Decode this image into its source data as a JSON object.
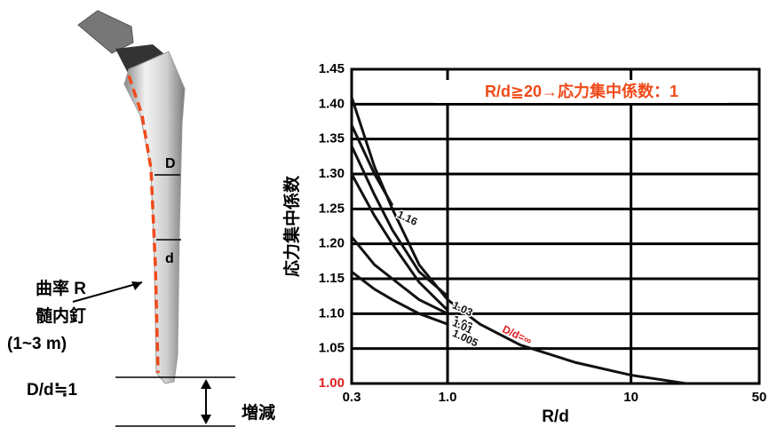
{
  "chart_data": {
    "type": "line",
    "xscale": "log",
    "annotation": "R/d≧20→応力集中係数：1",
    "annotation_color": "#f04a1a",
    "x_label": "R/d",
    "y_label": "応力集中係数",
    "grid": true,
    "x": [
      0.3,
      0.4,
      0.5,
      0.7,
      1.0,
      1.5,
      2.5,
      5,
      10,
      20
    ],
    "series": [
      {
        "name": "D/d=∞",
        "color": "#111111",
        "label_color": "#e02020",
        "values": [
          1.41,
          1.31,
          1.25,
          1.17,
          1.12,
          1.085,
          1.055,
          1.03,
          1.012,
          1.0
        ]
      },
      {
        "name": "1.16",
        "color": "#111111",
        "label_color": "#111111",
        "values": [
          1.37,
          1.3,
          1.255,
          null,
          null,
          null,
          null,
          null,
          null,
          null
        ]
      },
      {
        "name": "1.03",
        "color": "#111111",
        "label_color": "#111111",
        "values": [
          1.34,
          1.27,
          1.22,
          1.16,
          1.125,
          null,
          null,
          null,
          null,
          null
        ]
      },
      {
        "name": "1.02",
        "color": "#111111",
        "label_color": "#111111",
        "values": [
          1.3,
          1.24,
          1.2,
          1.145,
          1.105,
          null,
          null,
          null,
          null,
          null
        ]
      },
      {
        "name": "1.01",
        "color": "#111111",
        "label_color": "#111111",
        "values": [
          1.21,
          1.17,
          1.15,
          1.12,
          1.1,
          null,
          null,
          null,
          null,
          null
        ]
      },
      {
        "name": "1.005",
        "color": "#111111",
        "label_color": "#111111",
        "values": [
          1.16,
          1.135,
          1.12,
          1.1,
          1.085,
          null,
          null,
          null,
          null,
          null
        ]
      }
    ],
    "xlim": [
      0.3,
      50
    ],
    "xticks": [
      0.3,
      {
        "value": 1,
        "label": "1.0"
      },
      10,
      50
    ],
    "ylim": [
      1.0,
      1.45
    ],
    "yticks": [
      {
        "value": 1.0,
        "label": "1.00",
        "color": "#e02020"
      },
      {
        "value": 1.05,
        "label": "1.05"
      },
      {
        "value": 1.1,
        "label": "1.10"
      },
      {
        "value": 1.15,
        "label": "1.15"
      },
      {
        "value": 1.2,
        "label": "1.20"
      },
      {
        "value": 1.25,
        "label": "1.25"
      },
      {
        "value": 1.3,
        "label": "1.30"
      },
      {
        "value": 1.35,
        "label": "1.35"
      },
      {
        "value": 1.4,
        "label": "1.40"
      },
      {
        "value": 1.45,
        "label": "1.45"
      }
    ]
  },
  "diagram": {
    "labels": [
      "D",
      "d",
      "曲率 R",
      "髄内釘",
      "(1~3 m)",
      "D/d≒1",
      "増減"
    ]
  }
}
